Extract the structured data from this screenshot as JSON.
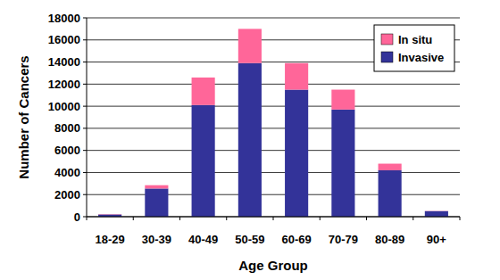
{
  "chart_data": {
    "type": "bar",
    "stacked": true,
    "grid": true,
    "legend": "upper right",
    "x_label": "Age Group",
    "y_label": "Number of Cancers",
    "categories": [
      "18-29",
      "30-39",
      "40-49",
      "50-59",
      "60-69",
      "70-79",
      "80-89",
      "90+"
    ],
    "series": [
      {
        "name": "Invasive",
        "color": "#333399",
        "values": [
          200,
          2550,
          10100,
          13900,
          11500,
          9700,
          4200,
          500
        ]
      },
      {
        "name": "In situ",
        "color": "#ff6699",
        "values": [
          30,
          300,
          2500,
          3100,
          2400,
          1800,
          600,
          20
        ]
      }
    ],
    "ylim": [
      0,
      18000
    ],
    "yticks": [
      0,
      2000,
      4000,
      6000,
      8000,
      10000,
      12000,
      14000,
      16000,
      18000
    ]
  }
}
